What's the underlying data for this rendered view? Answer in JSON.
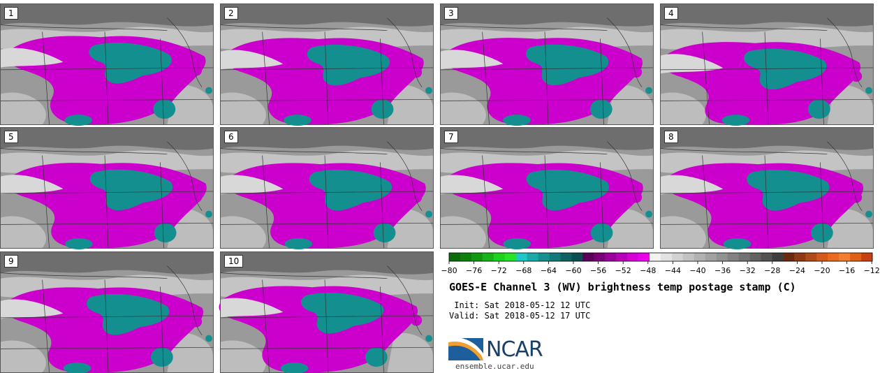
{
  "panels": [
    {
      "label": "1"
    },
    {
      "label": "2"
    },
    {
      "label": "3"
    },
    {
      "label": "4"
    },
    {
      "label": "5"
    },
    {
      "label": "6"
    },
    {
      "label": "7"
    },
    {
      "label": "8"
    },
    {
      "label": "9"
    },
    {
      "label": "10"
    }
  ],
  "colorbar": {
    "ticks": [
      "−80",
      "−76",
      "−72",
      "−68",
      "−64",
      "−60",
      "−56",
      "−52",
      "−48",
      "−44",
      "−40",
      "−36",
      "−32",
      "−28",
      "−24",
      "−20",
      "−16",
      "−12"
    ],
    "colors": [
      "#0a6b0a",
      "#0d7f0d",
      "#119811",
      "#16b416",
      "#1cd41c",
      "#26e326",
      "#1fc7c7",
      "#1aa9a9",
      "#168f8f",
      "#127878",
      "#0e6262",
      "#0a4f4f",
      "#5a005a",
      "#7a007a",
      "#9a009a",
      "#b800b8",
      "#d400d4",
      "#ec00ec",
      "#f2f2f2",
      "#e2e2e2",
      "#d2d2d2",
      "#c2c2c2",
      "#b2b2b2",
      "#a2a2a2",
      "#929292",
      "#828282",
      "#727272",
      "#626262",
      "#525252",
      "#3e3e3e",
      "#6b2a10",
      "#8e3a14",
      "#b04a18",
      "#d45a1c",
      "#ec6a20",
      "#f08030",
      "#e06018",
      "#c84010"
    ]
  },
  "title": "GOES-E Channel 3 (WV) brightness temp postage stamp (C)",
  "init_line": " Init: Sat 2018-05-12 12 UTC",
  "valid_line": "Valid: Sat 2018-05-12 17 UTC",
  "logo": {
    "text": "NCAR",
    "url": "ensemble.ucar.edu"
  },
  "colors": {
    "magenta": "#cc00cc",
    "teal": "#138f8f",
    "gray": "#9a9a9a",
    "light": "#d8d8d8"
  }
}
